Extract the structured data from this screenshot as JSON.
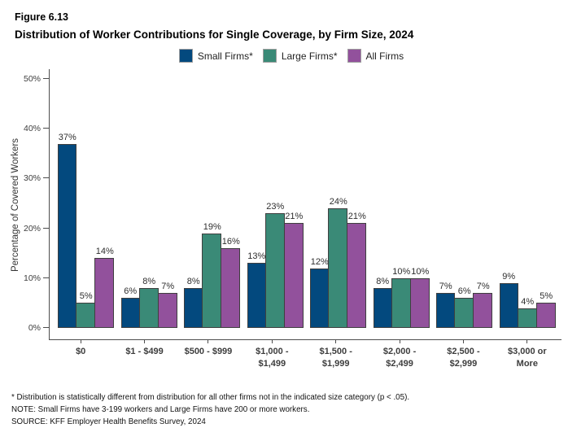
{
  "figure": {
    "number": "Figure 6.13",
    "title": "Distribution of Worker Contributions for Single Coverage, by Firm Size, 2024"
  },
  "colors": {
    "small_firms": "#03497E",
    "large_firms": "#3A8A77",
    "all_firms": "#92519C",
    "axis": "#4d4d4d"
  },
  "legend": [
    {
      "label": "Small Firms*",
      "color": "#03497E"
    },
    {
      "label": "Large Firms*",
      "color": "#3A8A77"
    },
    {
      "label": "All Firms",
      "color": "#92519C"
    }
  ],
  "chart_data": {
    "type": "bar",
    "title": "Distribution of Worker Contributions for Single Coverage, by Firm Size, 2024",
    "categories": [
      "$0",
      "$1 - $499",
      "$500 - $999",
      "$1,000 -\n$1,499",
      "$1,500 -\n$1,999",
      "$2,000 -\n$2,499",
      "$2,500 -\n$2,999",
      "$3,000 or\nMore"
    ],
    "series": [
      {
        "name": "Small Firms*",
        "color": "#03497E",
        "values": [
          37,
          6,
          8,
          13,
          12,
          8,
          7,
          9
        ]
      },
      {
        "name": "Large Firms*",
        "color": "#3A8A77",
        "values": [
          5,
          8,
          19,
          23,
          24,
          10,
          6,
          4
        ]
      },
      {
        "name": "All Firms",
        "color": "#92519C",
        "values": [
          14,
          7,
          16,
          21,
          21,
          10,
          7,
          5
        ]
      }
    ],
    "xlabel": "",
    "ylabel": "Percentage of Covered Workers",
    "ylim": [
      0,
      50
    ],
    "yticks": [
      0,
      10,
      20,
      30,
      40,
      50
    ],
    "ytick_labels": [
      "0%",
      "10%",
      "20%",
      "30%",
      "40%",
      "50%"
    ],
    "value_suffix": "%",
    "grid": false,
    "legend_position": "top"
  },
  "footnotes": [
    "* Distribution is statistically different from distribution for all other firms not in the indicated size category (p < .05).",
    "NOTE: Small Firms have 3-199 workers and Large Firms have 200 or more workers.",
    "SOURCE: KFF Employer Health Benefits Survey, 2024"
  ]
}
